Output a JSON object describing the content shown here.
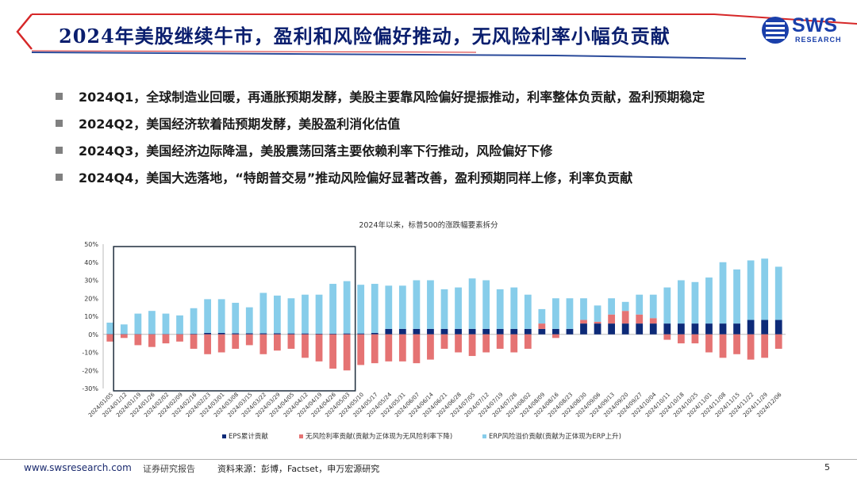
{
  "slide": {
    "title": "2024年美股继续牛市，盈利和风险偏好推动，无风险利率小幅负贡献",
    "logo_text": "SWS",
    "logo_sub": "RESEARCH",
    "bullets": [
      "2024Q1，全球制造业回暖，再通胀预期发酵，美股主要靠风险偏好提振推动，利率整体负贡献，盈利预期稳定",
      "2024Q2，美国经济软着陆预期发酵，美股盈利消化估值",
      "2024Q3，美国经济边际降温，美股震荡回落主要依赖利率下行推动，风险偏好下修",
      "2024Q4，美国大选落地，“特朗普交易”推动风险偏好显著改善，盈利预期同样上修，利率负贡献"
    ],
    "footer": {
      "url": "www.swsresearch.com",
      "report": "证券研究报告",
      "source": "资料来源：彭博，Factset，申万宏源研究",
      "page": "5"
    }
  },
  "colors": {
    "title": "#0a1e6e",
    "eps": "#0d2a78",
    "rf": "#e57373",
    "erp": "#87cdea",
    "highlight_box": "#1f2d3d",
    "title_accent": "#d62728"
  },
  "chart_data": {
    "type": "bar",
    "stacked": true,
    "title": "2024年以来，标普500的涨跌幅要素拆分",
    "ylim": [
      -30,
      50
    ],
    "yticks": [
      "-30%",
      "-20%",
      "-10%",
      "0%",
      "10%",
      "20%",
      "30%",
      "40%",
      "50%"
    ],
    "ytick_values": [
      -30,
      -20,
      -10,
      0,
      10,
      20,
      30,
      40,
      50
    ],
    "highlight_range": [
      "2024/01/12",
      "2024/05/03"
    ],
    "categories": [
      "2024/01/05",
      "2024/01/12",
      "2024/01/19",
      "2024/01/26",
      "2024/02/02",
      "2024/02/09",
      "2024/02/16",
      "2024/02/23",
      "2024/03/01",
      "2024/03/08",
      "2024/03/15",
      "2024/03/22",
      "2024/03/29",
      "2024/04/05",
      "2024/04/12",
      "2024/04/19",
      "2024/04/26",
      "2024/05/03",
      "2024/05/10",
      "2024/05/17",
      "2024/05/24",
      "2024/05/31",
      "2024/06/07",
      "2024/06/14",
      "2024/06/21",
      "2024/06/28",
      "2024/07/05",
      "2024/07/12",
      "2024/07/19",
      "2024/07/26",
      "2024/08/02",
      "2024/08/09",
      "2024/08/16",
      "2024/08/23",
      "2024/08/30",
      "2024/09/06",
      "2024/09/13",
      "2024/09/20",
      "2024/09/27",
      "2024/10/04",
      "2024/10/11",
      "2024/10/18",
      "2024/10/25",
      "2024/11/01",
      "2024/11/08",
      "2024/11/15",
      "2024/11/22",
      "2024/11/29",
      "2024/12/06"
    ],
    "labeled_categories": [
      "2024/01/05",
      "2024/01/12",
      "2024/01/19",
      "2024/01/26",
      "2024/02/02",
      "2024/02/09",
      "2024/02/16",
      "2024/02/23",
      "2024/03/01",
      "2024/03/08",
      "2024/03/15",
      "2024/03/22",
      "2024/03/29",
      "2024/04/05",
      "2024/04/12",
      "2024/04/19",
      "2024/04/26",
      "2024/05/03",
      "2024/05/10",
      "2024/05/17",
      "2024/05/24",
      "2024/05/31",
      "2024/06/07",
      "2024/06/14",
      "2024/06/21",
      "2024/06/28",
      "2024/07/05",
      "2024/07/12",
      "2024/07/19",
      "2024/07/26",
      "2024/08/02",
      "2024/08/09",
      "2024/08/16",
      "2024/08/23",
      "2024/08/30",
      "2024/09/06",
      "2024/09/13",
      "2024/09/20",
      "2024/09/27",
      "2024/10/04",
      "2024/10/11",
      "2024/10/18",
      "2024/10/25",
      "2024/11/01",
      "2024/11/08",
      "2024/11/15",
      "2024/11/22",
      "2024/11/29",
      "2024/12/06"
    ],
    "series": [
      {
        "name": "EPS累计贡献",
        "values": [
          0.2,
          0.2,
          0.2,
          0.2,
          0.2,
          0.2,
          0.3,
          0.8,
          0.8,
          0.6,
          0.6,
          0.6,
          0.6,
          0.5,
          0.5,
          0.4,
          0.4,
          0.5,
          0.5,
          0.8,
          3.0,
          3.0,
          3.0,
          3.0,
          3.0,
          3.0,
          3.0,
          3.0,
          3.0,
          3.0,
          3.0,
          3.0,
          3.0,
          3.0,
          6.0,
          6.0,
          6.0,
          6.0,
          6.0,
          6.0,
          6.0,
          6.0,
          6.0,
          6.0,
          6.0,
          6.0,
          8.0,
          8.0,
          8.0
        ]
      },
      {
        "name": "无风险利率贡献(贡献为正体现为无风险利率下降)",
        "values": [
          -4,
          -2,
          -6,
          -7,
          -5,
          -4,
          -8,
          -11,
          -10,
          -8,
          -6,
          -11,
          -9,
          -8,
          -13,
          -15,
          -19,
          -20,
          -17,
          -16,
          -15,
          -15,
          -16,
          -14,
          -8,
          -10,
          -12,
          -10,
          -8,
          -10,
          -8,
          3,
          -2,
          0,
          2,
          1,
          5,
          7,
          5,
          3,
          -3,
          -5,
          -5,
          -10,
          -13,
          -11,
          -14,
          -13,
          -8
        ]
      },
      {
        "name": "ERP风险溢价贡献(贡献为正体现为ERP上升)",
        "values": [
          6.3,
          5.3,
          11.3,
          12.8,
          11.3,
          10.3,
          14.2,
          18.7,
          18.7,
          16.9,
          14.4,
          22.4,
          20.9,
          19.5,
          21.5,
          21.6,
          27.6,
          29.0,
          27.0,
          27.2,
          24.0,
          24.0,
          27.0,
          27.0,
          22.0,
          23.0,
          28.0,
          27.0,
          22.0,
          23.0,
          19.0,
          8.0,
          17.0,
          17.0,
          12.0,
          9.0,
          9.0,
          5.0,
          11.0,
          13.0,
          20.0,
          24.0,
          23.0,
          25.5,
          34.0,
          30.0,
          33.0,
          34.0,
          29.5
        ]
      }
    ],
    "legend_position": "bottom",
    "grid": false
  }
}
